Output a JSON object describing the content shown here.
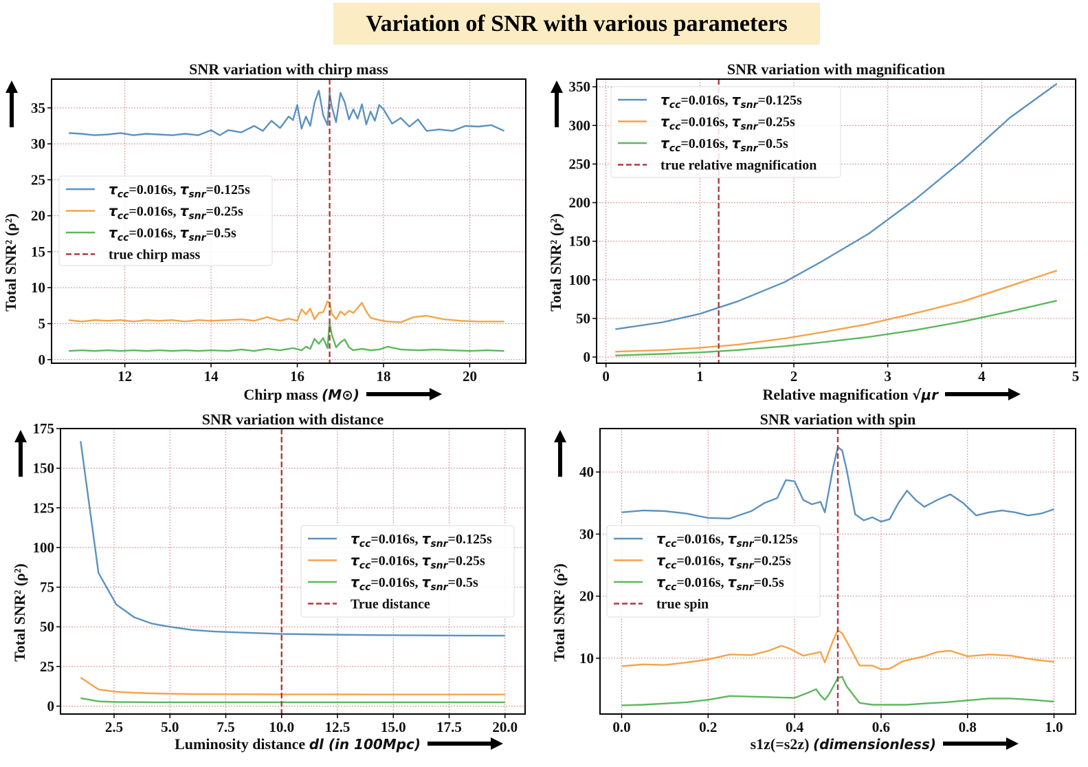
{
  "figure_title": "Variation of SNR with various parameters",
  "colors": {
    "series_blue": "#5b92c0",
    "series_orange": "#f5a34a",
    "series_green": "#5cb85c",
    "true_line": "#b0393e",
    "grid": "#d98b8b",
    "title_box": "#fbecc4"
  },
  "chart_data": [
    {
      "type": "line",
      "title": "SNR variation with chirp mass",
      "xlabel": "Chirp mass",
      "xlabel_unit": "(M⊙)",
      "ylabel": "Total SNR² (ρ²)",
      "xlim": [
        10.3,
        21.3
      ],
      "ylim": [
        -0.5,
        39
      ],
      "xticks": [
        12,
        14,
        16,
        18,
        20
      ],
      "yticks": [
        0,
        5,
        10,
        15,
        20,
        25,
        30,
        35
      ],
      "true_value": 16.75,
      "legend_position": "center-left",
      "legend": [
        "τcc=0.016s, τsnr=0.125s",
        "τcc=0.016s, τsnr=0.25s",
        "τcc=0.016s, τsnr=0.5s",
        "true chirp mass"
      ],
      "series": [
        {
          "name": "τcc=0.016s, τsnr=0.125s",
          "x": [
            10.7,
            11.0,
            11.3,
            11.6,
            11.9,
            12.2,
            12.5,
            12.8,
            13.1,
            13.4,
            13.7,
            14.0,
            14.2,
            14.4,
            14.7,
            15.0,
            15.2,
            15.4,
            15.6,
            15.8,
            15.9,
            16.0,
            16.1,
            16.2,
            16.3,
            16.4,
            16.5,
            16.6,
            16.7,
            16.75,
            16.8,
            16.9,
            17.0,
            17.1,
            17.2,
            17.3,
            17.4,
            17.5,
            17.6,
            17.7,
            17.8,
            17.9,
            18.0,
            18.2,
            18.4,
            18.6,
            18.8,
            19.0,
            19.3,
            19.6,
            19.9,
            20.2,
            20.5,
            20.8
          ],
          "values": [
            31.5,
            31.4,
            31.2,
            31.3,
            31.5,
            31.2,
            31.4,
            31.3,
            31.2,
            31.4,
            31.2,
            31.9,
            31.2,
            31.9,
            31.6,
            32.5,
            31.8,
            33.2,
            32.2,
            33.8,
            33.3,
            35.4,
            32.1,
            33.8,
            32.5,
            35.7,
            37.4,
            34.0,
            32.6,
            37.0,
            35.2,
            33.0,
            37.1,
            35.8,
            33.4,
            34.8,
            33.5,
            35.5,
            32.7,
            34.5,
            33.2,
            35.4,
            34.8,
            32.8,
            33.6,
            32.4,
            33.4,
            31.8,
            32.0,
            31.8,
            32.5,
            32.4,
            32.6,
            31.8
          ]
        },
        {
          "name": "τcc=0.016s, τsnr=0.25s",
          "x": [
            10.7,
            11.0,
            11.3,
            11.6,
            11.9,
            12.2,
            12.5,
            12.8,
            13.1,
            13.4,
            13.7,
            14.0,
            14.4,
            14.7,
            15.0,
            15.3,
            15.6,
            15.8,
            16.0,
            16.1,
            16.2,
            16.3,
            16.4,
            16.5,
            16.6,
            16.7,
            16.75,
            16.8,
            16.9,
            17.0,
            17.1,
            17.2,
            17.3,
            17.4,
            17.5,
            17.6,
            17.7,
            17.9,
            18.1,
            18.4,
            18.7,
            19.0,
            19.4,
            19.8,
            20.2,
            20.8
          ],
          "values": [
            5.5,
            5.3,
            5.5,
            5.4,
            5.5,
            5.3,
            5.5,
            5.4,
            5.5,
            5.3,
            5.5,
            5.4,
            5.5,
            5.6,
            5.4,
            5.9,
            5.4,
            5.7,
            5.4,
            7.0,
            6.3,
            7.1,
            5.6,
            6.5,
            6.6,
            8.1,
            7.9,
            6.4,
            5.6,
            6.7,
            6.2,
            6.8,
            6.5,
            7.2,
            7.9,
            6.7,
            5.8,
            5.5,
            5.3,
            5.2,
            5.9,
            6.1,
            5.6,
            5.4,
            5.3,
            5.3
          ]
        },
        {
          "name": "τcc=0.016s, τsnr=0.5s",
          "x": [
            10.7,
            11.0,
            11.3,
            11.6,
            11.9,
            12.2,
            12.5,
            12.8,
            13.1,
            13.4,
            13.7,
            14.0,
            14.4,
            14.7,
            15.0,
            15.3,
            15.6,
            15.9,
            16.1,
            16.2,
            16.3,
            16.4,
            16.5,
            16.6,
            16.7,
            16.75,
            16.8,
            16.9,
            17.0,
            17.1,
            17.2,
            17.3,
            17.5,
            17.7,
            17.9,
            18.1,
            18.4,
            18.8,
            19.2,
            19.6,
            20.0,
            20.4,
            20.8
          ],
          "values": [
            1.2,
            1.3,
            1.2,
            1.3,
            1.2,
            1.3,
            1.2,
            1.3,
            1.2,
            1.3,
            1.2,
            1.3,
            1.2,
            1.4,
            1.2,
            1.5,
            1.3,
            1.6,
            1.3,
            1.8,
            1.5,
            2.9,
            2.2,
            3.0,
            1.6,
            5.2,
            3.5,
            1.7,
            2.4,
            2.8,
            1.7,
            1.3,
            1.5,
            1.3,
            1.4,
            1.8,
            1.4,
            1.3,
            1.4,
            1.3,
            1.2,
            1.3,
            1.2
          ]
        }
      ]
    },
    {
      "type": "line",
      "title": "SNR variation with magnification",
      "xlabel": "Relative magnification",
      "xlabel_unit": "√μr",
      "ylabel": "Total SNR² (ρ²)",
      "xlim": [
        -0.1,
        5.0
      ],
      "ylim": [
        -8,
        360
      ],
      "xticks": [
        0,
        1,
        2,
        3,
        4,
        5
      ],
      "yticks": [
        0,
        50,
        100,
        150,
        200,
        250,
        300,
        350
      ],
      "true_value": 1.2,
      "legend_position": "top-left",
      "legend": [
        "τcc=0.016s, τsnr=0.125s",
        "τcc=0.016s, τsnr=0.25s",
        "τcc=0.016s, τsnr=0.5s",
        "true relative magnification"
      ],
      "series": [
        {
          "name": "τcc=0.016s, τsnr=0.125s",
          "x": [
            0.1,
            0.6,
            1.0,
            1.4,
            1.9,
            2.3,
            2.8,
            3.3,
            3.8,
            4.3,
            4.8
          ],
          "values": [
            36,
            45,
            56,
            72,
            97,
            124,
            160,
            205,
            255,
            310,
            354
          ]
        },
        {
          "name": "τcc=0.016s, τsnr=0.25s",
          "x": [
            0.1,
            0.6,
            1.0,
            1.4,
            1.9,
            2.3,
            2.8,
            3.3,
            3.8,
            4.3,
            4.8
          ],
          "values": [
            7,
            9,
            12,
            16,
            24,
            32,
            43,
            57,
            72,
            92,
            112
          ]
        },
        {
          "name": "τcc=0.016s, τsnr=0.5s",
          "x": [
            0.1,
            0.6,
            1.0,
            1.4,
            1.9,
            2.3,
            2.8,
            3.3,
            3.8,
            4.3,
            4.8
          ],
          "values": [
            2,
            4,
            6,
            9,
            14,
            19,
            26,
            35,
            46,
            59,
            73
          ]
        }
      ]
    },
    {
      "type": "line",
      "title": "SNR variation with distance",
      "xlabel": "Luminosity distance",
      "xlabel_unit": "dl (in 100Mpc)",
      "ylabel": "Total SNR² (ρ²)",
      "xlim": [
        0.1,
        20.9
      ],
      "ylim": [
        -5,
        175
      ],
      "xticks": [
        2.5,
        5.0,
        7.5,
        10.0,
        12.5,
        15.0,
        17.5,
        20.0
      ],
      "yticks": [
        0,
        25,
        50,
        75,
        100,
        125,
        150,
        175
      ],
      "true_value": 10.0,
      "legend_position": "center-right",
      "legend": [
        "τcc=0.016s, τsnr=0.125s",
        "τcc=0.016s, τsnr=0.25s",
        "τcc=0.016s, τsnr=0.5s",
        "True distance"
      ],
      "series": [
        {
          "name": "τcc=0.016s, τsnr=0.125s",
          "x": [
            1.0,
            1.8,
            2.6,
            3.4,
            4.2,
            5.0,
            6.0,
            7.0,
            8.0,
            9.0,
            10.0,
            11.0,
            12.0,
            14.0,
            16.0,
            18.0,
            20.0
          ],
          "values": [
            167,
            84,
            64,
            56,
            52,
            50,
            48,
            47,
            46.5,
            46,
            45.5,
            45.3,
            45.1,
            44.8,
            44.6,
            44.5,
            44.4
          ]
        },
        {
          "name": "τcc=0.016s, τsnr=0.25s",
          "x": [
            1.0,
            1.8,
            2.6,
            3.4,
            4.2,
            5.0,
            6.0,
            8.0,
            10.0,
            12.0,
            14.0,
            16.0,
            18.0,
            20.0
          ],
          "values": [
            18,
            10.5,
            9,
            8.4,
            8,
            7.8,
            7.6,
            7.5,
            7.4,
            7.4,
            7.3,
            7.3,
            7.3,
            7.3
          ]
        },
        {
          "name": "τcc=0.016s, τsnr=0.5s",
          "x": [
            1.0,
            1.8,
            2.6,
            3.4,
            4.2,
            5.0,
            7.0,
            10.0,
            14.0,
            18.0,
            20.0
          ],
          "values": [
            5,
            3,
            2.6,
            2.5,
            2.4,
            2.4,
            2.4,
            2.4,
            2.4,
            2.4,
            2.4
          ]
        }
      ]
    },
    {
      "type": "line",
      "title": "SNR variation with spin",
      "xlabel": "s1z(=s2z)",
      "xlabel_unit": "(dimensionless)",
      "ylabel": "Total SNR² (ρ²)",
      "xlim": [
        -0.05,
        1.05
      ],
      "ylim": [
        1.0,
        47
      ],
      "xticks": [
        0.0,
        0.2,
        0.4,
        0.6,
        0.8,
        1.0
      ],
      "yticks": [
        10,
        20,
        30,
        40
      ],
      "true_value": 0.5,
      "legend_position": "center-left",
      "legend": [
        "τcc=0.016s, τsnr=0.125s",
        "τcc=0.016s, τsnr=0.25s",
        "τcc=0.016s, τsnr=0.5s",
        "true spin"
      ],
      "series": [
        {
          "name": "τcc=0.016s, τsnr=0.125s",
          "x": [
            0.0,
            0.05,
            0.1,
            0.15,
            0.2,
            0.25,
            0.3,
            0.33,
            0.36,
            0.38,
            0.4,
            0.42,
            0.44,
            0.46,
            0.47,
            0.49,
            0.5,
            0.51,
            0.52,
            0.54,
            0.56,
            0.58,
            0.6,
            0.62,
            0.64,
            0.66,
            0.68,
            0.7,
            0.73,
            0.76,
            0.79,
            0.82,
            0.85,
            0.88,
            0.91,
            0.94,
            0.97,
            1.0
          ],
          "values": [
            33.5,
            33.8,
            33.7,
            33.3,
            32.6,
            32.5,
            33.7,
            35.0,
            35.8,
            38.7,
            38.5,
            35.5,
            34.8,
            35.2,
            33.5,
            41.0,
            44.0,
            43.5,
            40.5,
            33.2,
            32.2,
            32.7,
            32.0,
            32.4,
            35.0,
            37.0,
            35.5,
            34.4,
            35.5,
            36.4,
            35.0,
            33.0,
            33.5,
            33.8,
            33.5,
            33.0,
            33.3,
            34.0
          ]
        },
        {
          "name": "τcc=0.016s, τsnr=0.25s",
          "x": [
            0.0,
            0.05,
            0.1,
            0.15,
            0.2,
            0.25,
            0.3,
            0.34,
            0.37,
            0.39,
            0.42,
            0.44,
            0.46,
            0.47,
            0.49,
            0.5,
            0.51,
            0.53,
            0.55,
            0.58,
            0.6,
            0.62,
            0.65,
            0.7,
            0.73,
            0.76,
            0.8,
            0.85,
            0.9,
            0.95,
            1.0
          ],
          "values": [
            8.7,
            9.0,
            8.9,
            9.3,
            9.8,
            10.6,
            10.5,
            11.2,
            12.0,
            11.5,
            10.4,
            10.7,
            11.0,
            9.3,
            13.0,
            14.5,
            14.0,
            11.5,
            8.8,
            8.8,
            8.2,
            8.3,
            9.5,
            10.3,
            11.0,
            11.2,
            10.3,
            10.6,
            10.4,
            9.8,
            9.4
          ]
        },
        {
          "name": "τcc=0.016s, τsnr=0.5s",
          "x": [
            0.0,
            0.05,
            0.1,
            0.15,
            0.2,
            0.25,
            0.3,
            0.35,
            0.4,
            0.43,
            0.45,
            0.46,
            0.47,
            0.48,
            0.49,
            0.5,
            0.51,
            0.52,
            0.55,
            0.58,
            0.62,
            0.66,
            0.7,
            0.75,
            0.8,
            0.85,
            0.9,
            0.95,
            1.0
          ],
          "values": [
            2.4,
            2.5,
            2.7,
            2.9,
            3.3,
            3.9,
            3.8,
            3.7,
            3.6,
            4.4,
            5.0,
            4.0,
            3.3,
            4.2,
            5.5,
            6.8,
            7.0,
            5.5,
            2.8,
            2.5,
            2.5,
            2.5,
            2.7,
            2.9,
            3.2,
            3.5,
            3.5,
            3.3,
            3.0
          ]
        }
      ]
    }
  ]
}
